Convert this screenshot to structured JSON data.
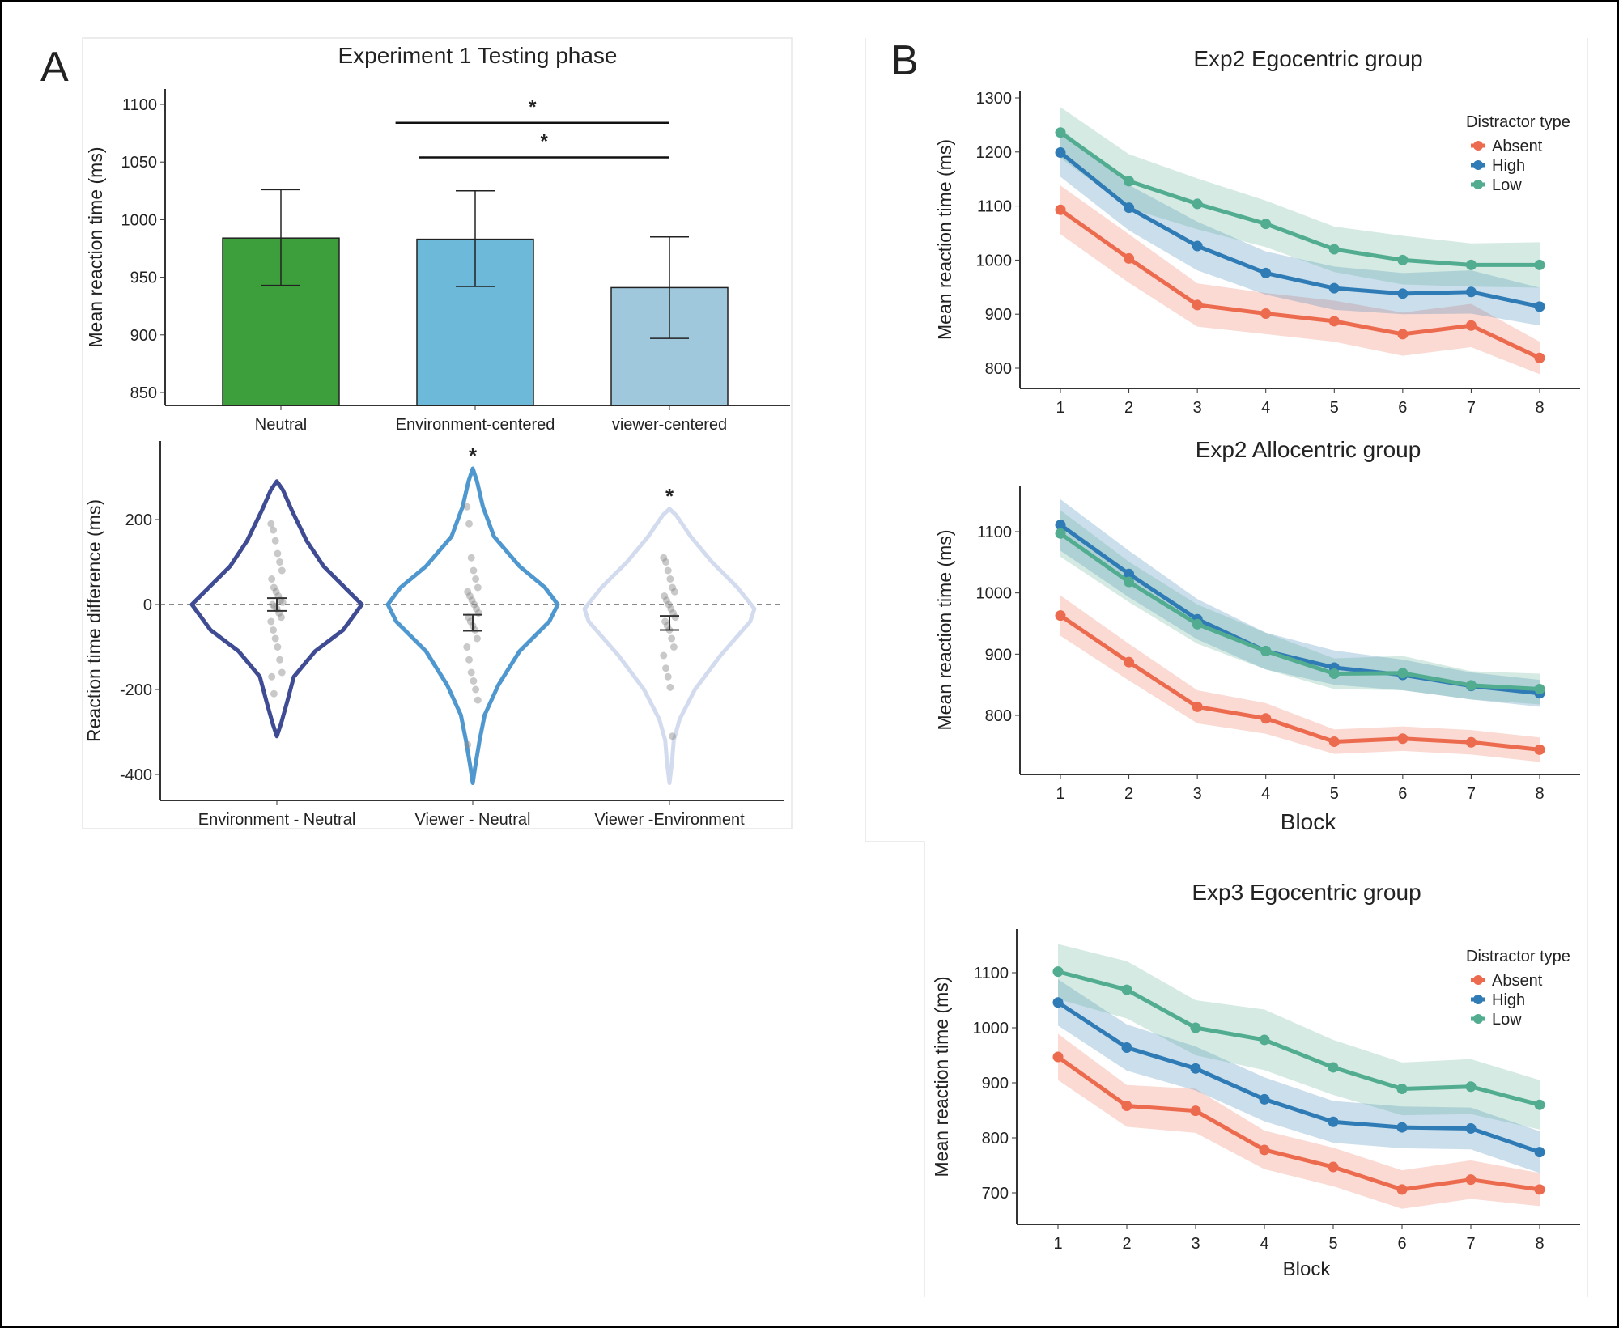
{
  "panel_labels": {
    "a": "A",
    "b": "B"
  },
  "chart_data": [
    {
      "id": "exp1-bar",
      "type": "bar",
      "title": "Experiment 1 Testing phase",
      "ylabel": "Mean reaction time (ms)",
      "xlabel": "",
      "ylim": [
        840,
        1110
      ],
      "yticks": [
        850,
        900,
        950,
        1000,
        1050,
        1100
      ],
      "categories": [
        "Neutral",
        "Environment-centered",
        "viewer-centered"
      ],
      "values": [
        984,
        983,
        941
      ],
      "error_low": [
        943,
        942,
        897
      ],
      "error_high": [
        1026,
        1025,
        985
      ],
      "colors": [
        "#3d9e3c",
        "#6cb9d9",
        "#9fc8dd"
      ],
      "significance": [
        {
          "from": 1,
          "to": 2,
          "y": 1084,
          "label": "*"
        },
        {
          "from": 1.54,
          "to": 2,
          "y": 1054,
          "label": "*"
        }
      ]
    },
    {
      "id": "exp1-violin",
      "type": "violin",
      "ylabel": "Reaction time difference (ms)",
      "ylim": [
        -460,
        360
      ],
      "yticks": [
        -400,
        -200,
        0,
        200
      ],
      "reference_line": 0,
      "categories": [
        "Environment - Neutral",
        "Viewer - Neutral",
        "Viewer -Environment"
      ],
      "colors": [
        "#3f4b93",
        "#4f97cf",
        "#d3dbee"
      ],
      "means": [
        0,
        -43,
        -43
      ],
      "ci_low": [
        -15,
        -62,
        -60
      ],
      "ci_high": [
        15,
        -24,
        -27
      ],
      "significance_labels": [
        "",
        "*",
        "*"
      ],
      "density_profiles": [
        [
          [
            -310,
            0
          ],
          [
            -280,
            0.05
          ],
          [
            -230,
            0.12
          ],
          [
            -170,
            0.2
          ],
          [
            -110,
            0.45
          ],
          [
            -60,
            0.78
          ],
          [
            0,
            1
          ],
          [
            40,
            0.8
          ],
          [
            90,
            0.55
          ],
          [
            150,
            0.35
          ],
          [
            220,
            0.18
          ],
          [
            270,
            0.07
          ],
          [
            290,
            0
          ]
        ],
        [
          [
            -420,
            0
          ],
          [
            -380,
            0.03
          ],
          [
            -320,
            0.08
          ],
          [
            -260,
            0.14
          ],
          [
            -190,
            0.3
          ],
          [
            -110,
            0.55
          ],
          [
            -40,
            0.9
          ],
          [
            0,
            1
          ],
          [
            40,
            0.85
          ],
          [
            90,
            0.55
          ],
          [
            160,
            0.25
          ],
          [
            230,
            0.12
          ],
          [
            290,
            0.05
          ],
          [
            320,
            0
          ]
        ],
        [
          [
            -420,
            0
          ],
          [
            -370,
            0.03
          ],
          [
            -320,
            0.05
          ],
          [
            -270,
            0.12
          ],
          [
            -200,
            0.3
          ],
          [
            -120,
            0.6
          ],
          [
            -40,
            0.95
          ],
          [
            -10,
            1
          ],
          [
            40,
            0.8
          ],
          [
            100,
            0.5
          ],
          [
            160,
            0.25
          ],
          [
            210,
            0.08
          ],
          [
            225,
            0
          ]
        ]
      ],
      "points": [
        [
          190,
          175,
          150,
          120,
          100,
          80,
          60,
          40,
          30,
          20,
          10,
          5,
          0,
          -5,
          -10,
          -20,
          -30,
          -40,
          -60,
          -80,
          -100,
          -130,
          -160,
          -170,
          -210
        ],
        [
          230,
          190,
          110,
          80,
          60,
          40,
          30,
          20,
          10,
          0,
          -10,
          -20,
          -30,
          -40,
          -50,
          -60,
          -80,
          -100,
          -130,
          -160,
          -180,
          -200,
          -225,
          -330
        ],
        [
          110,
          100,
          80,
          60,
          40,
          30,
          20,
          10,
          0,
          -10,
          -20,
          -30,
          -40,
          -50,
          -60,
          -80,
          -100,
          -120,
          -150,
          -170,
          -195,
          -310
        ]
      ]
    },
    {
      "id": "exp2-ego",
      "type": "line",
      "title": "Exp2 Egocentric group",
      "ylabel": "Mean reaction time (ms)",
      "xlabel": "",
      "x": [
        1,
        2,
        3,
        4,
        5,
        6,
        7,
        8
      ],
      "ylim": [
        760,
        1310
      ],
      "yticks": [
        800,
        900,
        1000,
        1100,
        1200,
        1300
      ],
      "legend": {
        "title": "Distractor type",
        "placement": "top-right"
      },
      "series": [
        {
          "name": "Absent",
          "color": "#ec6b4f",
          "values": [
            1093,
            1003,
            917,
            901,
            887,
            863,
            879,
            819
          ],
          "band": [
            45,
            45,
            40,
            38,
            38,
            40,
            40,
            30
          ]
        },
        {
          "name": "High",
          "color": "#2f7bb5",
          "values": [
            1199,
            1097,
            1026,
            976,
            948,
            938,
            941,
            914
          ],
          "band": [
            45,
            42,
            45,
            40,
            40,
            38,
            40,
            35
          ]
        },
        {
          "name": "Low",
          "color": "#52ac90",
          "values": [
            1236,
            1146,
            1104,
            1067,
            1020,
            1000,
            991,
            991
          ],
          "band": [
            47,
            50,
            47,
            43,
            42,
            45,
            40,
            42
          ]
        }
      ]
    },
    {
      "id": "exp2-allo",
      "type": "line",
      "title": "Exp2 Allocentric group",
      "ylabel": "Mean reaction time (ms)",
      "xlabel": "Block",
      "x": [
        1,
        2,
        3,
        4,
        5,
        6,
        7,
        8
      ],
      "ylim": [
        703,
        1170
      ],
      "yticks": [
        800,
        900,
        1000,
        1100
      ],
      "series": [
        {
          "name": "Absent",
          "color": "#ec6b4f",
          "values": [
            963,
            887,
            814,
            795,
            757,
            762,
            756,
            744
          ],
          "band": [
            33,
            30,
            27,
            25,
            20,
            20,
            20,
            20
          ]
        },
        {
          "name": "High",
          "color": "#2f7bb5",
          "values": [
            1111,
            1031,
            957,
            905,
            878,
            866,
            848,
            836
          ],
          "band": [
            42,
            38,
            33,
            30,
            28,
            25,
            22,
            22
          ]
        },
        {
          "name": "Low",
          "color": "#52ac90",
          "values": [
            1097,
            1018,
            949,
            905,
            868,
            869,
            849,
            843
          ],
          "band": [
            38,
            33,
            32,
            30,
            25,
            28,
            23,
            25
          ]
        }
      ]
    },
    {
      "id": "exp3-ego",
      "type": "line",
      "title": "Exp3 Egocentric group",
      "ylabel": "Mean reaction time (ms)",
      "xlabel": "Block",
      "x": [
        1,
        2,
        3,
        4,
        5,
        6,
        7,
        8
      ],
      "ylim": [
        620,
        1180
      ],
      "yticks": [
        700,
        800,
        900,
        1000,
        1100
      ],
      "legend": {
        "title": "Distractor type",
        "placement": "top-right"
      },
      "series": [
        {
          "name": "Absent",
          "color": "#ec6b4f",
          "values": [
            947,
            858,
            849,
            778,
            747,
            706,
            724,
            706
          ],
          "band": [
            42,
            38,
            40,
            35,
            35,
            35,
            35,
            30
          ]
        },
        {
          "name": "High",
          "color": "#2f7bb5",
          "values": [
            1046,
            964,
            926,
            870,
            829,
            819,
            817,
            774
          ],
          "band": [
            42,
            42,
            40,
            40,
            38,
            38,
            38,
            38
          ]
        },
        {
          "name": "Low",
          "color": "#52ac90",
          "values": [
            1102,
            1069,
            1000,
            978,
            928,
            889,
            893,
            860
          ],
          "band": [
            50,
            52,
            50,
            55,
            50,
            48,
            50,
            45
          ]
        }
      ]
    }
  ]
}
